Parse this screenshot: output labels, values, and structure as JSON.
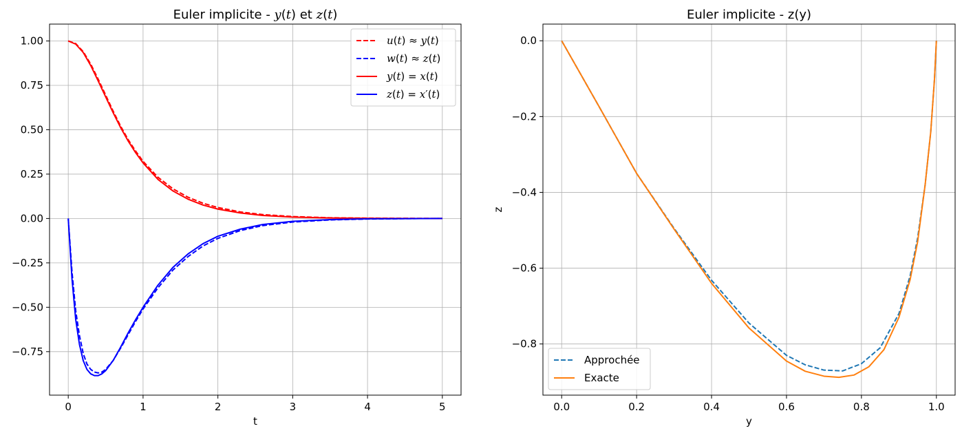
{
  "chart_data": [
    {
      "type": "line",
      "title": "Euler implicite - y(t) et z(t)",
      "xlabel": "t",
      "ylabel": "",
      "xlim": [
        -0.25,
        5.25
      ],
      "ylim": [
        -0.995,
        1.095
      ],
      "xticks": [
        0,
        1,
        2,
        3,
        4,
        5
      ],
      "yticks": [
        -0.75,
        -0.5,
        -0.25,
        0.0,
        0.25,
        0.5,
        0.75,
        1.0
      ],
      "xtick_labels": [
        "0",
        "1",
        "2",
        "3",
        "4",
        "5"
      ],
      "ytick_labels": [
        "−0.75",
        "−0.50",
        "−0.25",
        "0.00",
        "0.25",
        "0.50",
        "0.75",
        "1.00"
      ],
      "grid": true,
      "legend_position": "top-right",
      "series": [
        {
          "name": "u(t) ≈ y(t)",
          "color": "#ff0000",
          "style": "dashed",
          "x": [
            0,
            0.1,
            0.2,
            0.3,
            0.4,
            0.5,
            0.6,
            0.7,
            0.8,
            0.9,
            1.0,
            1.2,
            1.4,
            1.6,
            1.8,
            2.0,
            2.3,
            2.6,
            3.0,
            3.5,
            4.0,
            4.5,
            5.0
          ],
          "y": [
            1.0,
            0.985,
            0.94,
            0.87,
            0.785,
            0.695,
            0.605,
            0.52,
            0.445,
            0.38,
            0.322,
            0.232,
            0.167,
            0.12,
            0.086,
            0.062,
            0.037,
            0.022,
            0.011,
            0.004,
            0.002,
            0.001,
            0.0
          ]
        },
        {
          "name": "w(t) ≈ z(t)",
          "color": "#0000ff",
          "style": "dashed",
          "x": [
            0,
            0.05,
            0.1,
            0.15,
            0.2,
            0.25,
            0.3,
            0.35,
            0.4,
            0.45,
            0.5,
            0.6,
            0.7,
            0.8,
            0.9,
            1.0,
            1.2,
            1.4,
            1.6,
            1.8,
            2.0,
            2.3,
            2.6,
            3.0,
            3.5,
            4.0,
            4.5,
            5.0
          ],
          "y": [
            0.0,
            -0.3,
            -0.52,
            -0.66,
            -0.76,
            -0.82,
            -0.85,
            -0.865,
            -0.87,
            -0.865,
            -0.85,
            -0.8,
            -0.73,
            -0.655,
            -0.58,
            -0.51,
            -0.39,
            -0.29,
            -0.215,
            -0.155,
            -0.112,
            -0.068,
            -0.04,
            -0.02,
            -0.008,
            -0.003,
            -0.001,
            0.0
          ]
        },
        {
          "name": "y(t) = x(t)",
          "color": "#ff0000",
          "style": "solid",
          "x": [
            0,
            0.1,
            0.2,
            0.3,
            0.4,
            0.5,
            0.6,
            0.7,
            0.8,
            0.9,
            1.0,
            1.2,
            1.4,
            1.6,
            1.8,
            2.0,
            2.3,
            2.6,
            3.0,
            3.5,
            4.0,
            4.5,
            5.0
          ],
          "y": [
            1.0,
            0.982,
            0.935,
            0.862,
            0.775,
            0.685,
            0.596,
            0.512,
            0.437,
            0.371,
            0.313,
            0.22,
            0.155,
            0.109,
            0.076,
            0.053,
            0.031,
            0.017,
            0.008,
            0.003,
            0.001,
            0.0,
            0.0
          ]
        },
        {
          "name": "z(t) = x′(t)",
          "color": "#0000ff",
          "style": "solid",
          "x": [
            0,
            0.05,
            0.1,
            0.15,
            0.2,
            0.25,
            0.3,
            0.35,
            0.4,
            0.45,
            0.5,
            0.6,
            0.7,
            0.8,
            0.9,
            1.0,
            1.2,
            1.4,
            1.6,
            1.8,
            2.0,
            2.3,
            2.6,
            3.0,
            3.5,
            4.0,
            4.5,
            5.0
          ],
          "y": [
            0.0,
            -0.34,
            -0.57,
            -0.71,
            -0.8,
            -0.85,
            -0.875,
            -0.885,
            -0.885,
            -0.875,
            -0.857,
            -0.8,
            -0.725,
            -0.645,
            -0.57,
            -0.5,
            -0.375,
            -0.275,
            -0.2,
            -0.142,
            -0.1,
            -0.06,
            -0.034,
            -0.016,
            -0.006,
            -0.002,
            -0.001,
            0.0
          ]
        }
      ]
    },
    {
      "type": "line",
      "title": "Euler implicite - z(y)",
      "xlabel": "y",
      "ylabel": "z",
      "xlim": [
        -0.05,
        1.05
      ],
      "ylim": [
        -0.935,
        0.044
      ],
      "xticks": [
        0.0,
        0.2,
        0.4,
        0.6,
        0.8,
        1.0
      ],
      "yticks": [
        -0.8,
        -0.6,
        -0.4,
        -0.2,
        0.0
      ],
      "xtick_labels": [
        "0.0",
        "0.2",
        "0.4",
        "0.6",
        "0.8",
        "1.0"
      ],
      "ytick_labels": [
        "−0.8",
        "−0.6",
        "−0.4",
        "−0.2",
        "0.0"
      ],
      "grid": true,
      "legend_position": "bottom-left",
      "series": [
        {
          "name": "Approchée",
          "color": "#1f77b4",
          "style": "dashed",
          "x": [
            0.0,
            0.1,
            0.2,
            0.3,
            0.4,
            0.5,
            0.6,
            0.65,
            0.7,
            0.75,
            0.8,
            0.85,
            0.9,
            0.93,
            0.95,
            0.97,
            0.985,
            0.995,
            1.0
          ],
          "y": [
            0.0,
            -0.174,
            -0.35,
            -0.495,
            -0.632,
            -0.745,
            -0.83,
            -0.855,
            -0.869,
            -0.871,
            -0.852,
            -0.81,
            -0.72,
            -0.62,
            -0.52,
            -0.38,
            -0.24,
            -0.1,
            0.0
          ]
        },
        {
          "name": "Exacte",
          "color": "#ff7f0e",
          "style": "solid",
          "x": [
            0.0,
            0.1,
            0.2,
            0.3,
            0.4,
            0.5,
            0.6,
            0.65,
            0.7,
            0.74,
            0.78,
            0.82,
            0.86,
            0.9,
            0.93,
            0.95,
            0.97,
            0.985,
            0.995,
            1.0
          ],
          "y": [
            0.0,
            -0.174,
            -0.35,
            -0.497,
            -0.64,
            -0.758,
            -0.845,
            -0.872,
            -0.885,
            -0.888,
            -0.882,
            -0.86,
            -0.815,
            -0.73,
            -0.63,
            -0.53,
            -0.38,
            -0.24,
            -0.1,
            0.0
          ]
        }
      ]
    }
  ]
}
